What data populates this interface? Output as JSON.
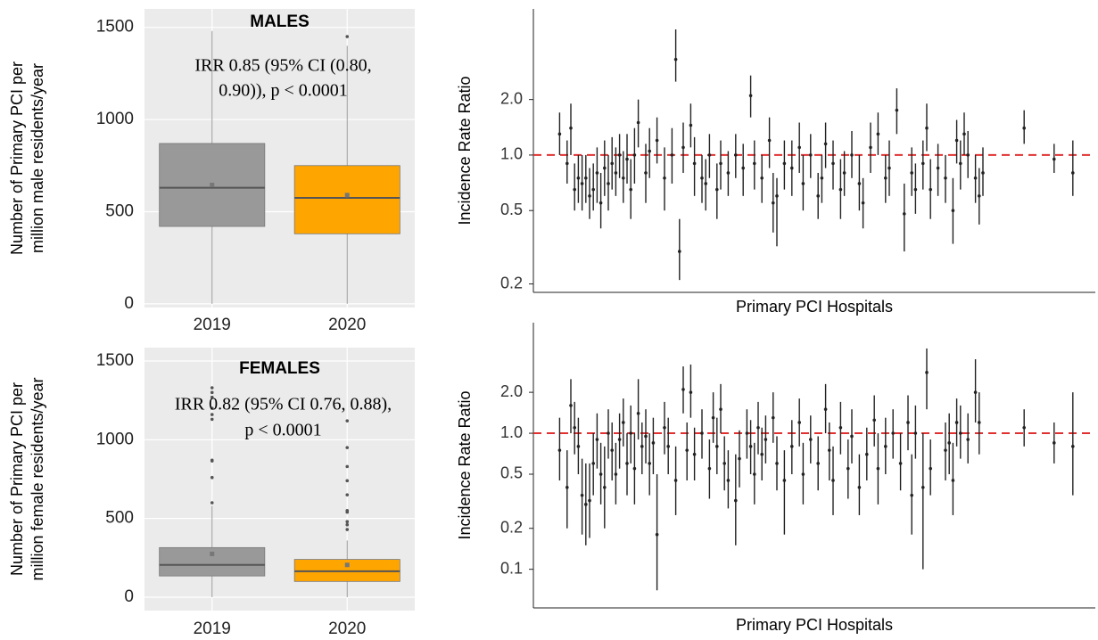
{
  "chart_data": [
    {
      "type": "box",
      "title": "MALES",
      "annotation": [
        "IRR 0.85 (95% CI (0.80,",
        "0.90)), p < 0.0001"
      ],
      "ylabel": [
        "Number of Primary PCI per",
        "million male residents/year"
      ],
      "categories": [
        "2019",
        "2020"
      ],
      "colors": [
        "#999999",
        "#ffa500"
      ],
      "boxes": [
        {
          "min": 0,
          "q1": 420,
          "median": 630,
          "q3": 870,
          "max": 1480,
          "mean": 645,
          "outliers": []
        },
        {
          "min": 0,
          "q1": 380,
          "median": 575,
          "q3": 750,
          "max": 1400,
          "mean": 590,
          "outliers": [
            1450
          ]
        }
      ],
      "ylim": [
        -20,
        1600
      ],
      "yticks": [
        0,
        500,
        1000,
        1500
      ],
      "grid": true
    },
    {
      "type": "errorbar",
      "ylabel": "Incidence Rate Ratio",
      "xlabel": "Primary PCI Hospitals",
      "yscale": "log",
      "ylim": [
        0.18,
        6.2
      ],
      "xlim": [
        0,
        150
      ],
      "yticks": [
        0.2,
        0.5,
        {
          "value": 1,
          "label": "1.0"
        },
        {
          "value": 2,
          "label": "2.0"
        }
      ],
      "reference_line": {
        "value": 1,
        "color": "#e03030"
      },
      "series": [
        {
          "color": "#222222",
          "x": [
            7,
            9,
            10,
            11,
            12,
            13,
            14,
            15,
            16,
            17,
            18,
            19,
            20,
            21,
            22,
            23,
            24,
            25,
            26,
            27,
            28,
            30,
            31,
            33,
            35,
            37,
            38,
            39,
            40,
            42,
            43,
            45,
            46,
            47,
            49,
            50,
            52,
            54,
            56,
            58,
            59,
            61,
            63,
            64,
            65,
            67,
            69,
            71,
            72,
            74,
            76,
            77,
            78,
            80,
            82,
            83,
            85,
            87,
            88,
            90,
            92,
            94,
            95,
            97,
            99,
            101,
            102,
            104,
            105,
            106,
            108,
            110,
            112,
            113,
            114,
            115,
            116,
            118,
            119,
            120,
            131,
            139,
            144
          ],
          "values": [
            1.3,
            0.9,
            1.4,
            0.65,
            0.75,
            0.7,
            0.75,
            0.6,
            0.65,
            0.8,
            0.55,
            0.85,
            0.7,
            0.9,
            0.8,
            1.0,
            0.75,
            0.95,
            0.65,
            1.0,
            1.5,
            0.8,
            1.05,
            1.2,
            0.75,
            1.0,
            3.3,
            0.3,
            1.1,
            1.45,
            0.9,
            0.75,
            0.7,
            1.0,
            0.65,
            0.9,
            0.8,
            1.0,
            0.85,
            2.1,
            0.9,
            0.75,
            1.2,
            0.55,
            0.6,
            0.9,
            0.85,
            1.1,
            0.7,
            1.0,
            0.6,
            0.75,
            1.15,
            0.9,
            0.65,
            0.8,
            1.0,
            0.7,
            0.55,
            1.1,
            1.3,
            0.75,
            0.85,
            1.75,
            0.48,
            0.8,
            0.65,
            0.9,
            1.4,
            0.65,
            0.85,
            0.75,
            0.5,
            1.2,
            0.9,
            1.3,
            1.0,
            0.75,
            0.6,
            0.8,
            1.4,
            0.95,
            0.8
          ],
          "lower": [
            1.0,
            0.7,
            1.0,
            0.5,
            0.55,
            0.5,
            0.55,
            0.45,
            0.5,
            0.55,
            0.4,
            0.6,
            0.5,
            0.65,
            0.6,
            0.75,
            0.55,
            0.7,
            0.45,
            0.7,
            1.1,
            0.55,
            0.75,
            0.9,
            0.5,
            0.7,
            2.5,
            0.21,
            0.8,
            1.1,
            0.6,
            0.55,
            0.5,
            0.75,
            0.45,
            0.65,
            0.6,
            0.75,
            0.6,
            1.6,
            0.65,
            0.55,
            0.85,
            0.38,
            0.32,
            0.65,
            0.6,
            0.8,
            0.5,
            0.75,
            0.45,
            0.55,
            0.85,
            0.65,
            0.45,
            0.6,
            0.75,
            0.5,
            0.4,
            0.8,
            1.0,
            0.55,
            0.6,
            1.3,
            0.3,
            0.6,
            0.48,
            0.65,
            1.05,
            0.45,
            0.6,
            0.55,
            0.33,
            0.9,
            0.65,
            1.0,
            0.75,
            0.55,
            0.42,
            0.6,
            1.15,
            0.8,
            0.6
          ],
          "upper": [
            1.7,
            1.2,
            1.9,
            0.9,
            1.0,
            1.0,
            1.0,
            0.85,
            0.9,
            1.1,
            0.8,
            1.2,
            1.0,
            1.25,
            1.1,
            1.3,
            1.05,
            1.3,
            0.95,
            1.4,
            2.0,
            1.15,
            1.4,
            1.6,
            1.1,
            1.4,
            4.8,
            0.45,
            1.5,
            1.9,
            1.25,
            1.0,
            0.95,
            1.3,
            0.9,
            1.2,
            1.05,
            1.3,
            1.15,
            2.7,
            1.2,
            1.0,
            1.6,
            0.8,
            0.75,
            1.2,
            1.2,
            1.5,
            1.0,
            1.3,
            0.8,
            1.0,
            1.5,
            1.2,
            0.95,
            1.05,
            1.35,
            1.0,
            0.75,
            1.5,
            1.7,
            1.0,
            1.2,
            2.3,
            0.7,
            1.1,
            0.9,
            1.2,
            1.9,
            0.95,
            1.15,
            1.0,
            0.75,
            1.55,
            1.2,
            1.7,
            1.35,
            1.0,
            0.85,
            1.1,
            1.75,
            1.15,
            1.2
          ]
        }
      ]
    },
    {
      "type": "box",
      "title": "FEMALES",
      "annotation": [
        "IRR 0.82 (95% CI 0.76, 0.88),",
        "p < 0.0001"
      ],
      "ylabel": [
        "Number of Primary PCI per",
        "million female residents/year"
      ],
      "categories": [
        "2019",
        "2020"
      ],
      "colors": [
        "#999999",
        "#ffa500"
      ],
      "boxes": [
        {
          "min": 0,
          "q1": 135,
          "median": 205,
          "q3": 315,
          "max": 580,
          "mean": 275,
          "outliers": [
            600,
            760,
            865,
            870,
            1130,
            1160,
            1200,
            1270,
            1300,
            1330
          ]
        },
        {
          "min": 0,
          "q1": 100,
          "median": 165,
          "q3": 240,
          "max": 360,
          "mean": 205,
          "outliers": [
            430,
            460,
            480,
            540,
            550,
            650,
            740,
            830,
            950,
            1120
          ]
        }
      ],
      "ylim": [
        -85,
        1585
      ],
      "yticks": [
        0,
        500,
        1000,
        1500
      ],
      "grid": true
    },
    {
      "type": "errorbar",
      "ylabel": "Incidence Rate Ratio",
      "xlabel": "Primary PCI Hospitals",
      "yscale": "log",
      "ylim": [
        0.052,
        6.5
      ],
      "xlim": [
        0,
        150
      ],
      "yticks": [
        0.1,
        0.2,
        0.5,
        {
          "value": 1,
          "label": "1.0"
        },
        {
          "value": 2,
          "label": "2.0"
        }
      ],
      "reference_line": {
        "value": 1,
        "color": "#e03030"
      },
      "series": [
        {
          "color": "#222222",
          "x": [
            7,
            9,
            10,
            11,
            12,
            13,
            14,
            15,
            16,
            17,
            18,
            19,
            20,
            21,
            22,
            23,
            24,
            25,
            26,
            27,
            28,
            29,
            30,
            31,
            32,
            33,
            35,
            36,
            38,
            40,
            41,
            42,
            43,
            45,
            47,
            48,
            49,
            50,
            51,
            52,
            54,
            55,
            57,
            58,
            59,
            60,
            61,
            62,
            64,
            65,
            67,
            69,
            71,
            72,
            74,
            76,
            78,
            79,
            80,
            82,
            84,
            85,
            87,
            89,
            91,
            92,
            94,
            96,
            98,
            100,
            101,
            102,
            104,
            105,
            106,
            110,
            111,
            112,
            113,
            114,
            116,
            118,
            119,
            131,
            139,
            144
          ],
          "values": [
            0.75,
            0.4,
            1.6,
            1.1,
            0.8,
            0.35,
            0.3,
            0.32,
            0.6,
            0.9,
            0.5,
            0.4,
            1.0,
            0.75,
            0.5,
            0.9,
            1.2,
            0.6,
            1.0,
            0.55,
            1.4,
            0.8,
            0.95,
            0.6,
            0.85,
            0.18,
            1.1,
            0.8,
            0.45,
            2.1,
            0.75,
            2.0,
            0.7,
            1.0,
            0.55,
            1.3,
            0.8,
            1.5,
            0.6,
            0.45,
            0.32,
            0.65,
            1.0,
            0.8,
            0.5,
            1.1,
            0.7,
            0.9,
            1.3,
            0.6,
            0.45,
            0.8,
            1.2,
            0.5,
            0.9,
            0.6,
            1.5,
            0.75,
            0.45,
            1.1,
            0.55,
            0.95,
            0.4,
            0.7,
            1.25,
            0.55,
            0.8,
            1.0,
            0.6,
            1.2,
            0.35,
            1.0,
            0.4,
            2.8,
            0.55,
            0.75,
            0.85,
            0.45,
            1.2,
            1.0,
            0.9,
            2.0,
            1.2,
            1.1,
            0.85,
            0.8
          ],
          "lower": [
            0.45,
            0.2,
            1.0,
            0.7,
            0.5,
            0.18,
            0.15,
            0.17,
            0.35,
            0.55,
            0.3,
            0.2,
            0.65,
            0.45,
            0.3,
            0.55,
            0.8,
            0.35,
            0.6,
            0.3,
            0.9,
            0.5,
            0.6,
            0.35,
            0.5,
            0.07,
            0.7,
            0.5,
            0.25,
            1.4,
            0.45,
            1.3,
            0.45,
            0.65,
            0.33,
            0.85,
            0.5,
            1.0,
            0.38,
            0.28,
            0.15,
            0.4,
            0.65,
            0.5,
            0.3,
            0.7,
            0.45,
            0.6,
            0.85,
            0.38,
            0.18,
            0.5,
            0.8,
            0.3,
            0.6,
            0.38,
            1.0,
            0.45,
            0.25,
            0.7,
            0.33,
            0.6,
            0.25,
            0.45,
            0.8,
            0.3,
            0.5,
            0.65,
            0.38,
            0.75,
            0.18,
            0.65,
            0.1,
            1.5,
            0.35,
            0.45,
            0.5,
            0.25,
            0.8,
            0.65,
            0.6,
            1.2,
            0.7,
            0.8,
            0.6,
            0.35
          ],
          "upper": [
            1.3,
            0.75,
            2.5,
            1.7,
            1.3,
            0.65,
            0.6,
            0.6,
            1.0,
            1.4,
            0.85,
            0.8,
            1.5,
            1.2,
            0.85,
            1.4,
            1.8,
            1.0,
            1.6,
            1.0,
            2.5,
            1.2,
            1.5,
            1.0,
            1.3,
            0.5,
            1.7,
            1.3,
            0.8,
            3.1,
            1.2,
            3.2,
            1.1,
            1.5,
            0.9,
            2.0,
            1.3,
            2.3,
            0.95,
            0.75,
            0.7,
            1.05,
            1.5,
            1.25,
            0.85,
            1.7,
            1.1,
            1.35,
            2.0,
            0.95,
            0.75,
            1.25,
            1.8,
            0.85,
            1.35,
            0.95,
            2.3,
            1.2,
            0.8,
            1.7,
            0.9,
            1.5,
            0.7,
            1.1,
            1.9,
            1.0,
            1.3,
            1.5,
            1.0,
            1.9,
            0.7,
            1.6,
            1.0,
            4.2,
            0.9,
            1.2,
            1.4,
            0.85,
            1.8,
            1.6,
            1.4,
            3.5,
            2.0,
            1.5,
            1.2,
            2.0
          ]
        }
      ]
    }
  ]
}
